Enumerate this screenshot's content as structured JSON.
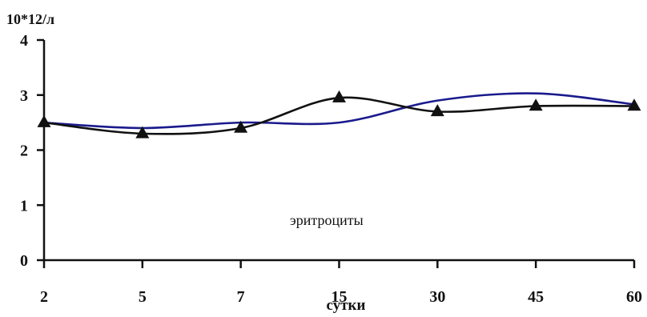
{
  "chart_data": {
    "type": "line",
    "y_unit_label": "10*12/л",
    "xlabel": "сутки",
    "ylabel": "",
    "annotation": "эритроциты",
    "categories": [
      "2",
      "5",
      "7",
      "15",
      "30",
      "45",
      "60"
    ],
    "y_ticks": [
      "0",
      "1",
      "2",
      "3",
      "4"
    ],
    "ylim": [
      0,
      4
    ],
    "grid": false,
    "legend": "none",
    "series": [
      {
        "values": [
          2.5,
          2.3,
          2.4,
          2.95,
          2.7,
          2.8,
          2.8
        ],
        "color": "#111111",
        "marker": "triangle"
      },
      {
        "values": [
          2.5,
          2.4,
          2.5,
          2.5,
          2.9,
          3.03,
          2.83
        ],
        "color": "#1a1a8c",
        "marker": "none"
      }
    ]
  }
}
